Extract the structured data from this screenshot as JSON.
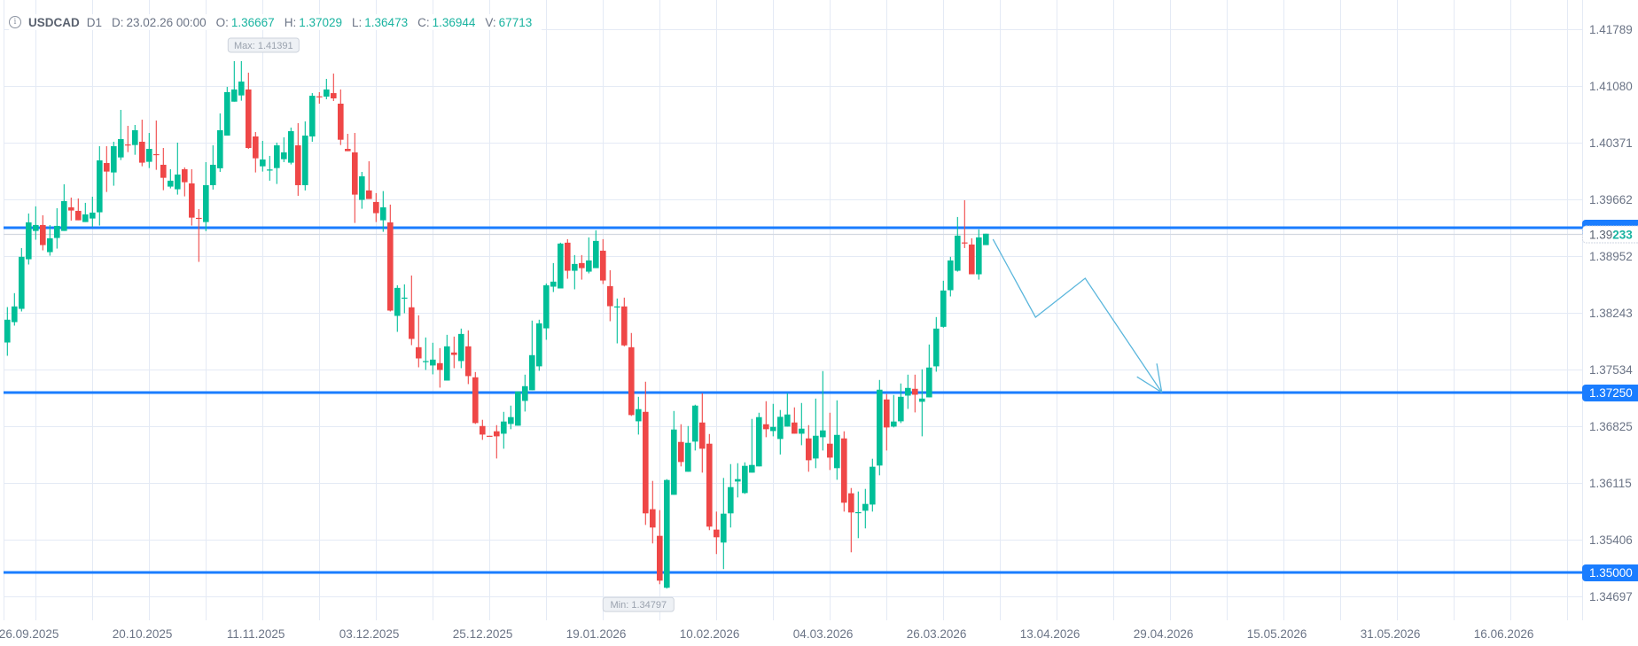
{
  "header": {
    "info_icon": "i",
    "symbol": "USDCAD",
    "timeframe": "D1",
    "date_label": "D:",
    "date": "23.02.26 00:00",
    "open_label": "O:",
    "open": "1.36667",
    "high_label": "H:",
    "high": "1.37029",
    "low_label": "L:",
    "low": "1.36473",
    "close_label": "C:",
    "close": "1.36944",
    "volume_label": "V:",
    "volume": "67713"
  },
  "colors": {
    "up": "#00bf98",
    "down": "#ef4747",
    "level_line": "#1a7dff",
    "projection": "#5ab6dc",
    "grid": "#e4eaf5",
    "axis_text": "#6b7486",
    "value_text": "#19b3a0"
  },
  "chart_data": {
    "type": "candlestick",
    "symbol": "USDCAD",
    "timeframe": "D1",
    "ylim": [
      1.344,
      1.42155
    ],
    "y_ticks": [
      "1.41789",
      "1.41080",
      "1.40371",
      "1.39662",
      "1.38952",
      "1.38243",
      "1.37534",
      "1.36825",
      "1.36115",
      "1.35406",
      "1.34697"
    ],
    "x_labels": [
      {
        "label": "26.09.2025",
        "bar": 4
      },
      {
        "label": "20.10.2025",
        "bar": 20
      },
      {
        "label": "11.11.2025",
        "bar": 36
      },
      {
        "label": "03.12.2025",
        "bar": 52
      },
      {
        "label": "25.12.2025",
        "bar": 68
      },
      {
        "label": "19.01.2026",
        "bar": 84
      },
      {
        "label": "10.02.2026",
        "bar": 100
      },
      {
        "label": "04.03.2026",
        "bar": 116
      },
      {
        "label": "26.03.2026",
        "bar": 132
      },
      {
        "label": "13.04.2026",
        "bar": 148
      },
      {
        "label": "29.04.2026",
        "bar": 164
      },
      {
        "label": "15.05.2026",
        "bar": 180
      },
      {
        "label": "31.05.2026",
        "bar": 196
      },
      {
        "label": "16.06.2026",
        "bar": 212
      }
    ],
    "ohlc_fields": [
      "open",
      "high",
      "low",
      "close"
    ],
    "ohlc": [
      [
        1.37873,
        1.38316,
        1.37707,
        1.38158
      ],
      [
        1.38128,
        1.3849,
        1.38084,
        1.38324
      ],
      [
        1.38294,
        1.39054,
        1.38261,
        1.38944
      ],
      [
        1.38914,
        1.39486,
        1.38848,
        1.39375
      ],
      [
        1.39268,
        1.39575,
        1.39158,
        1.39342
      ],
      [
        1.39342,
        1.39464,
        1.39025,
        1.39091
      ],
      [
        1.39003,
        1.39342,
        1.38958,
        1.39176
      ],
      [
        1.3918,
        1.39552,
        1.39047,
        1.39331
      ],
      [
        1.39268,
        1.39851,
        1.39268,
        1.39641
      ],
      [
        1.39563,
        1.39685,
        1.39397,
        1.39523
      ],
      [
        1.39519,
        1.39674,
        1.39401,
        1.39401
      ],
      [
        1.39379,
        1.39619,
        1.39379,
        1.39475
      ],
      [
        1.39423,
        1.39696,
        1.3932,
        1.39497
      ],
      [
        1.39501,
        1.40327,
        1.39335,
        1.4015
      ],
      [
        1.40117,
        1.40327,
        1.39755,
        1.4001
      ],
      [
        1.39999,
        1.40383,
        1.39833,
        1.40327
      ],
      [
        1.40187,
        1.40781,
        1.40154,
        1.40416
      ],
      [
        1.40349,
        1.40582,
        1.40253,
        1.40342
      ],
      [
        1.40342,
        1.40593,
        1.4022,
        1.40527
      ],
      [
        1.40383,
        1.40659,
        1.40076,
        1.40121
      ],
      [
        1.40132,
        1.40493,
        1.40054,
        1.40294
      ],
      [
        1.40228,
        1.40648,
        1.40032,
        1.4022
      ],
      [
        1.40095,
        1.40305,
        1.39777,
        1.39932
      ],
      [
        1.39822,
        1.40039,
        1.398,
        1.39896
      ],
      [
        1.39789,
        1.40372,
        1.39722,
        1.39973
      ],
      [
        1.40039,
        1.40062,
        1.397,
        1.39877
      ],
      [
        1.39862,
        1.40039,
        1.39335,
        1.39434
      ],
      [
        1.39431,
        1.39541,
        1.38881,
        1.39423
      ],
      [
        1.39379,
        1.40128,
        1.39265,
        1.3984
      ],
      [
        1.3984,
        1.40338,
        1.39785,
        1.40095
      ],
      [
        1.40051,
        1.40737,
        1.40006,
        1.40527
      ],
      [
        1.4046,
        1.41069,
        1.4046,
        1.41003
      ],
      [
        1.40884,
        1.41391,
        1.40884,
        1.41036
      ],
      [
        1.40962,
        1.41391,
        1.40896,
        1.41135
      ],
      [
        1.41036,
        1.41246,
        1.40294,
        1.40305
      ],
      [
        1.40449,
        1.40504,
        1.39999,
        1.40176
      ],
      [
        1.40076,
        1.40394,
        1.4001,
        1.40161
      ],
      [
        1.40028,
        1.40206,
        1.39896,
        1.40036
      ],
      [
        1.40054,
        1.40372,
        1.39855,
        1.40338
      ],
      [
        1.40165,
        1.40438,
        1.40128,
        1.4025
      ],
      [
        1.40121,
        1.4056,
        1.40099,
        1.40515
      ],
      [
        1.40338,
        1.40615,
        1.39707,
        1.3984
      ],
      [
        1.3984,
        1.40637,
        1.39774,
        1.4046
      ],
      [
        1.40449,
        1.40991,
        1.40383,
        1.40958
      ],
      [
        1.40951,
        1.41003,
        1.40859,
        1.40943
      ],
      [
        1.40947,
        1.41169,
        1.40914,
        1.41036
      ],
      [
        1.40991,
        1.41235,
        1.40892,
        1.40925
      ],
      [
        1.40859,
        1.41036,
        1.40342,
        1.40408
      ],
      [
        1.40294,
        1.40482,
        1.40265,
        1.40265
      ],
      [
        1.4025,
        1.40493,
        1.39368,
        1.39722
      ],
      [
        1.39656,
        1.40006,
        1.39545,
        1.39951
      ],
      [
        1.39774,
        1.40139,
        1.39667,
        1.39667
      ],
      [
        1.3963,
        1.39741,
        1.39379,
        1.3949
      ],
      [
        1.39401,
        1.39766,
        1.39257,
        1.39563
      ],
      [
        1.39375,
        1.39597,
        1.38261,
        1.38272
      ],
      [
        1.38206,
        1.38589,
        1.38006,
        1.38556
      ],
      [
        1.38427,
        1.386,
        1.38239,
        1.38434
      ],
      [
        1.38313,
        1.38711,
        1.3784,
        1.37918
      ],
      [
        1.37814,
        1.38213,
        1.37563,
        1.37674
      ],
      [
        1.37634,
        1.37936,
        1.3753,
        1.37641
      ],
      [
        1.37586,
        1.3787,
        1.37475,
        1.37659
      ],
      [
        1.37615,
        1.37803,
        1.37309,
        1.3753
      ],
      [
        1.37397,
        1.37969,
        1.37397,
        1.37825
      ],
      [
        1.37748,
        1.37947,
        1.37552,
        1.37718
      ],
      [
        1.37641,
        1.38047,
        1.37552,
        1.3798
      ],
      [
        1.37825,
        1.38025,
        1.37353,
        1.37453
      ],
      [
        1.37438,
        1.37504,
        1.36855,
        1.36866
      ],
      [
        1.36829,
        1.36907,
        1.36656,
        1.36722
      ],
      [
        1.36707,
        1.36707,
        1.367,
        1.367
      ],
      [
        1.36763,
        1.3684,
        1.36423,
        1.367
      ],
      [
        1.36733,
        1.37006,
        1.36545,
        1.36885
      ],
      [
        1.36855,
        1.37084,
        1.36789,
        1.3694
      ],
      [
        1.36833,
        1.37261,
        1.36833,
        1.37261
      ],
      [
        1.37143,
        1.37471,
        1.3701,
        1.37327
      ],
      [
        1.37276,
        1.38147,
        1.37276,
        1.37715
      ],
      [
        1.37575,
        1.38158,
        1.37519,
        1.38113
      ],
      [
        1.3805,
        1.38611,
        1.37907,
        1.38589
      ],
      [
        1.38571,
        1.38866,
        1.38504,
        1.38634
      ],
      [
        1.38549,
        1.39121,
        1.38549,
        1.3911
      ],
      [
        1.39121,
        1.39165,
        1.3867,
        1.3877
      ],
      [
        1.3877,
        1.38966,
        1.38538,
        1.38855
      ],
      [
        1.38866,
        1.38966,
        1.38659,
        1.38803
      ],
      [
        1.38759,
        1.39187,
        1.38737,
        1.38899
      ],
      [
        1.38803,
        1.39276,
        1.38803,
        1.39143
      ],
      [
        1.39021,
        1.39165,
        1.38604,
        1.38648
      ],
      [
        1.38578,
        1.38777,
        1.38139,
        1.38327
      ],
      [
        1.38316,
        1.38423,
        1.37862,
        1.38324
      ],
      [
        1.38324,
        1.38434,
        1.37825,
        1.37837
      ],
      [
        1.37814,
        1.37992,
        1.36955,
        1.36966
      ],
      [
        1.36888,
        1.37194,
        1.36722,
        1.3704
      ],
      [
        1.37006,
        1.37383,
        1.35593,
        1.35737
      ],
      [
        1.35789,
        1.36143,
        1.35361,
        1.3556
      ],
      [
        1.35456,
        1.35778,
        1.34851,
        1.34896
      ],
      [
        1.34807,
        1.36165,
        1.34797,
        1.36154
      ],
      [
        1.35969,
        1.37017,
        1.35969,
        1.36785
      ],
      [
        1.3663,
        1.36851,
        1.36324,
        1.36379
      ],
      [
        1.36257,
        1.36829,
        1.36257,
        1.36619
      ],
      [
        1.36634,
        1.37095,
        1.36523,
        1.37084
      ],
      [
        1.36873,
        1.37239,
        1.36246,
        1.36545
      ],
      [
        1.36608,
        1.36729,
        1.35527,
        1.35571
      ],
      [
        1.35534,
        1.35759,
        1.35228,
        1.35438
      ],
      [
        1.35372,
        1.3618,
        1.3504,
        1.35733
      ],
      [
        1.35737,
        1.36353,
        1.3556,
        1.36065
      ],
      [
        1.36135,
        1.36364,
        1.35936,
        1.36165
      ],
      [
        1.35991,
        1.36375,
        1.3598,
        1.36331
      ],
      [
        1.36246,
        1.36918,
        1.36246,
        1.36342
      ],
      [
        1.36324,
        1.36995,
        1.36324,
        1.3694
      ],
      [
        1.36851,
        1.37139,
        1.36689,
        1.36789
      ],
      [
        1.36766,
        1.37106,
        1.367,
        1.36818
      ],
      [
        1.36667,
        1.37029,
        1.36473,
        1.36944
      ],
      [
        1.36822,
        1.37239,
        1.36822,
        1.36973
      ],
      [
        1.36873,
        1.37062,
        1.36733,
        1.36733
      ],
      [
        1.36733,
        1.37117,
        1.36589,
        1.36796
      ],
      [
        1.36674,
        1.3684,
        1.36257,
        1.36401
      ],
      [
        1.36423,
        1.37172,
        1.36302,
        1.36707
      ],
      [
        1.36689,
        1.37516,
        1.36523,
        1.36774
      ],
      [
        1.36608,
        1.36995,
        1.36279,
        1.36434
      ],
      [
        1.36302,
        1.3715,
        1.36157,
        1.36718
      ],
      [
        1.36674,
        1.36763,
        1.35759,
        1.3587
      ],
      [
        1.35988,
        1.36054,
        1.3525,
        1.35748
      ],
      [
        1.35744,
        1.3601,
        1.35427,
        1.35752
      ],
      [
        1.3577,
        1.36043,
        1.35549,
        1.35855
      ],
      [
        1.35847,
        1.3642,
        1.35759,
        1.3632
      ],
      [
        1.36335,
        1.37405,
        1.36213,
        1.37283
      ],
      [
        1.37161,
        1.37228,
        1.36523,
        1.36811
      ],
      [
        1.36822,
        1.37217,
        1.36811,
        1.36885
      ],
      [
        1.36888,
        1.37361,
        1.36866,
        1.37194
      ],
      [
        1.37209,
        1.37471,
        1.37043,
        1.37305
      ],
      [
        1.37294,
        1.37471,
        1.36999,
        1.3722
      ],
      [
        1.37132,
        1.37538,
        1.367,
        1.37172
      ],
      [
        1.37187,
        1.37848,
        1.37187,
        1.3756
      ],
      [
        1.37575,
        1.38191,
        1.37508,
        1.38047
      ],
      [
        1.38069,
        1.38645,
        1.38058,
        1.38523
      ],
      [
        1.38527,
        1.38944,
        1.38449,
        1.38899
      ],
      [
        1.3877,
        1.39442,
        1.38759,
        1.39209
      ],
      [
        1.39124,
        1.39652,
        1.39054,
        1.39117
      ],
      [
        1.39098,
        1.39176,
        1.38726,
        1.38726
      ],
      [
        1.38726,
        1.39287,
        1.38659,
        1.39187
      ],
      [
        1.39091,
        1.39233,
        1.39091,
        1.39233
      ]
    ],
    "levels": [
      {
        "price": 1.39307,
        "label": ""
      },
      {
        "price": 1.3725,
        "label": "1.37250"
      },
      {
        "price": 1.35,
        "label": "1.35000"
      }
    ],
    "current_price": "1.39233",
    "current_price_value": 1.39233,
    "max_marker": {
      "label": "Max: 1.41391",
      "bar": 33,
      "price": 1.41391
    },
    "min_marker": {
      "label": "Min: 1.34797",
      "bar": 94,
      "price": 1.34797
    },
    "projection_path": [
      {
        "bar": 140.0,
        "price": 1.39164
      },
      {
        "bar": 146.0,
        "price": 1.38189
      },
      {
        "bar": 153.0,
        "price": 1.38676
      },
      {
        "bar": 163.8,
        "price": 1.3725
      }
    ]
  }
}
